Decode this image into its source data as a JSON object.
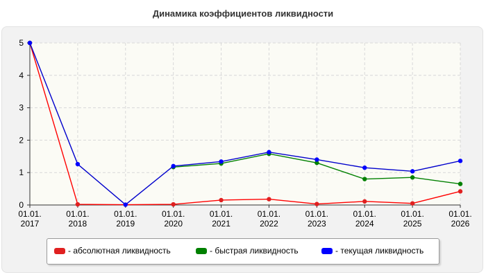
{
  "chart_data": {
    "type": "line",
    "title": "Динамика коэффициентов ликвидности",
    "x": [
      "01.01.2017",
      "01.01.2018",
      "01.01.2019",
      "01.01.2020",
      "01.01.2021",
      "01.01.2022",
      "01.01.2023",
      "01.01.2024",
      "01.01.2025",
      "01.01.2026"
    ],
    "x_tick_labels": [
      [
        "01.01.",
        "2017"
      ],
      [
        "01.01.",
        "2018"
      ],
      [
        "01.01.",
        "2019"
      ],
      [
        "01.01.",
        "2020"
      ],
      [
        "01.01.",
        "2021"
      ],
      [
        "01.01.",
        "2022"
      ],
      [
        "01.01.",
        "2023"
      ],
      [
        "01.01.",
        "2024"
      ],
      [
        "01.01.",
        "2025"
      ],
      [
        "01.01.",
        "2026"
      ]
    ],
    "y_ticks": [
      "0",
      "1",
      "2",
      "3",
      "4",
      "5"
    ],
    "ylim": [
      0,
      5
    ],
    "grid": true,
    "legend_position": "bottom",
    "series": [
      {
        "name": "- абсолютная ликвидность",
        "color": "#ff0000",
        "marker_color": "#e02020",
        "values": [
          5,
          0.02,
          0.01,
          0.02,
          0.15,
          0.18,
          0.03,
          0.11,
          0.05,
          0.42
        ]
      },
      {
        "name": "- быстрая ликвидность",
        "color": "#008000",
        "marker_color": "#008000",
        "values": [
          5,
          null,
          null,
          1.17,
          1.28,
          1.58,
          1.3,
          0.8,
          0.85,
          0.65
        ]
      },
      {
        "name": "- текущая ликвидность",
        "color": "#0000cc",
        "marker_color": "#0000ff",
        "values": [
          5,
          1.26,
          0.01,
          1.2,
          1.34,
          1.63,
          1.4,
          1.15,
          1.04,
          1.36
        ]
      }
    ]
  }
}
